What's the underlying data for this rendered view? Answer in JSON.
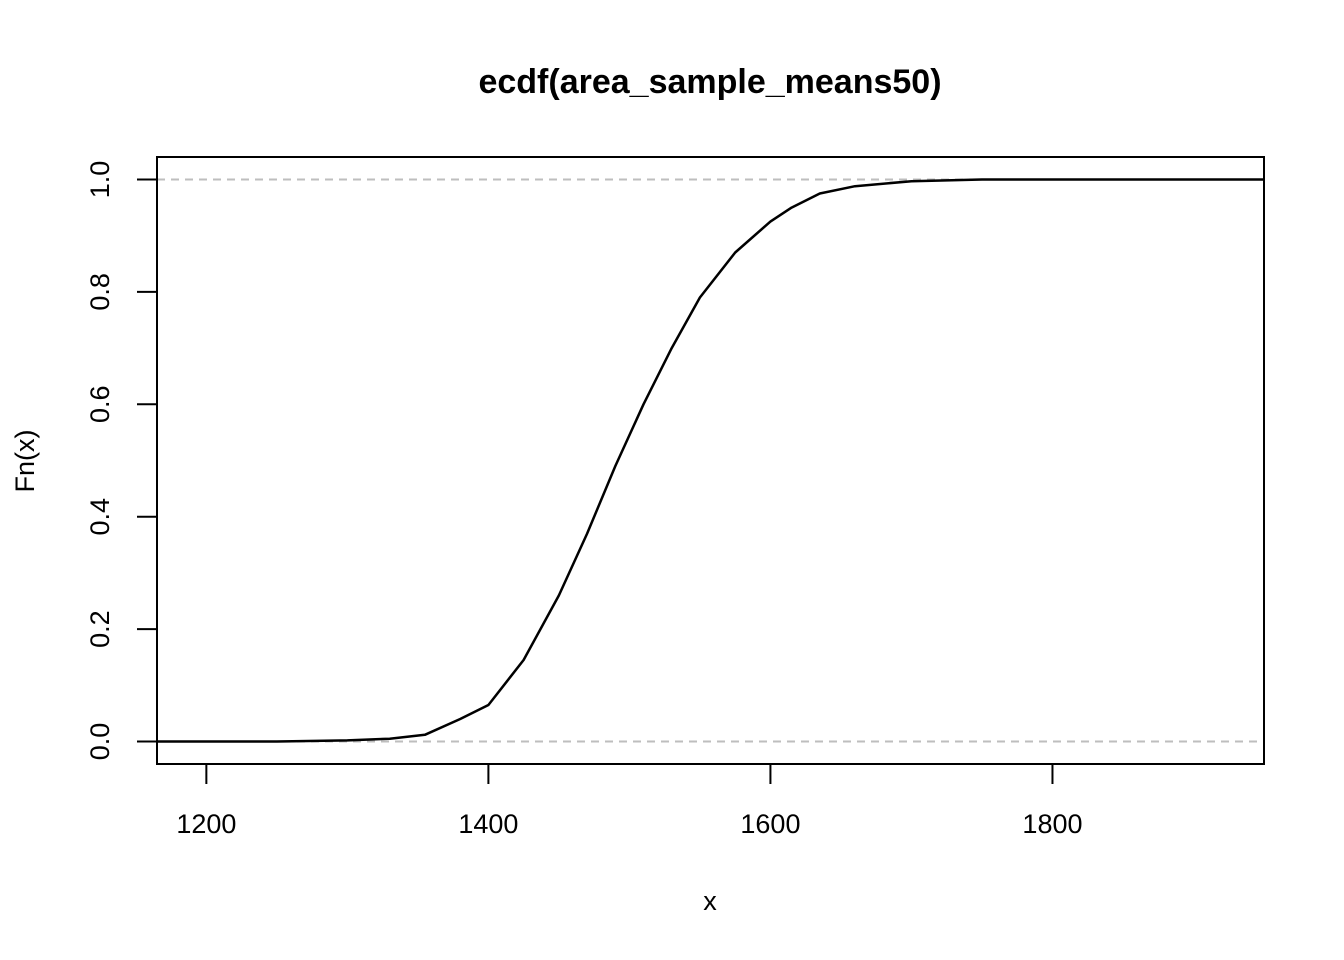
{
  "chart_data": {
    "type": "line",
    "subtype": "ecdf",
    "title": "ecdf(area_sample_means50)",
    "xlabel": "x",
    "ylabel": "Fn(x)",
    "xlim": [
      1165,
      1950
    ],
    "ylim": [
      -0.04,
      1.04
    ],
    "x_ticks": [
      "1200",
      "1400",
      "1600",
      "1800"
    ],
    "y_ticks": [
      "0.0",
      "0.2",
      "0.4",
      "0.6",
      "0.8",
      "1.0"
    ],
    "reference_lines": [
      0,
      1
    ],
    "reference_line_color": "#bebebe",
    "line_color": "#000000",
    "grid": false,
    "series": [
      {
        "x": [
          1165,
          1250,
          1300,
          1330,
          1355,
          1380,
          1400,
          1425,
          1450,
          1470,
          1490,
          1510,
          1530,
          1550,
          1575,
          1600,
          1615,
          1635,
          1660,
          1700,
          1750,
          1950
        ],
        "y": [
          0.0,
          0.0,
          0.002,
          0.005,
          0.012,
          0.04,
          0.065,
          0.145,
          0.26,
          0.37,
          0.49,
          0.6,
          0.7,
          0.79,
          0.87,
          0.925,
          0.95,
          0.975,
          0.988,
          0.997,
          1.0,
          1.0
        ]
      }
    ]
  }
}
